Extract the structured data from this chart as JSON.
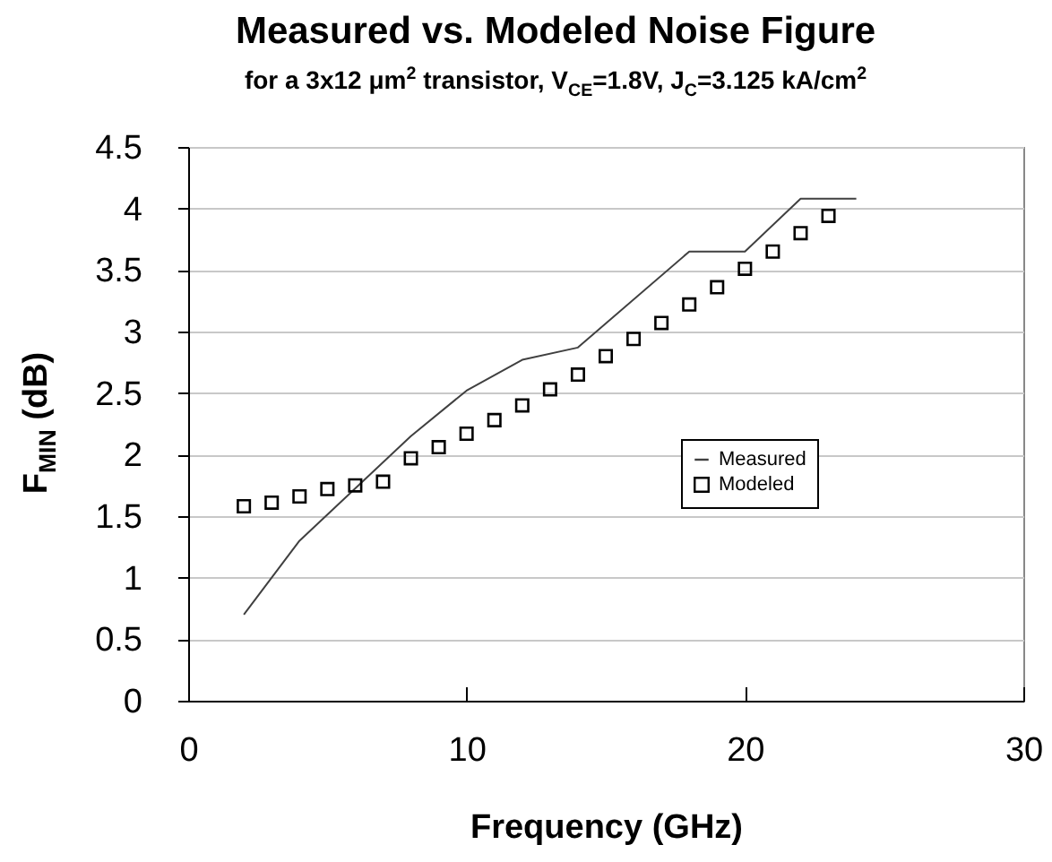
{
  "chart_data": {
    "type": "line",
    "title": "Measured vs. Modeled Noise Figure",
    "subtitle": "for a 3x12  μm$^{2}$ transistor, V$_{CE}$=1.8V, J$_{C}$=3.125 kA/cm$^{2}$",
    "xlabel": "Frequency (GHz)",
    "ylabel": "F$_{MIN}$ (dB)",
    "xlim": [
      0,
      30
    ],
    "xticks": [
      0,
      10,
      20,
      30
    ],
    "ylim": [
      0,
      4.5
    ],
    "yticks": [
      0,
      0.5,
      1,
      1.5,
      2,
      2.5,
      3,
      3.5,
      4,
      4.5
    ],
    "grid": "y",
    "legend": "right",
    "series": [
      {
        "name": "Measured",
        "type": "line",
        "color": "#404040",
        "x": [
          2,
          4,
          8,
          10,
          12,
          14,
          18,
          20,
          22,
          24
        ],
        "values": [
          0.7,
          1.3,
          2.15,
          2.52,
          2.77,
          2.87,
          3.65,
          3.65,
          4.08,
          4.08
        ]
      },
      {
        "name": "Modeled",
        "type": "scatter",
        "marker": "square",
        "color": "#000000",
        "x": [
          2,
          3,
          4,
          5,
          6,
          7,
          8,
          9,
          10,
          11,
          12,
          13,
          14,
          15,
          16,
          17,
          18,
          19,
          20,
          21,
          22,
          23
        ],
        "values": [
          1.58,
          1.61,
          1.66,
          1.72,
          1.75,
          1.78,
          1.97,
          2.06,
          2.17,
          2.28,
          2.4,
          2.53,
          2.65,
          2.8,
          2.94,
          3.07,
          3.22,
          3.36,
          3.51,
          3.65,
          3.8,
          3.94
        ]
      }
    ]
  }
}
